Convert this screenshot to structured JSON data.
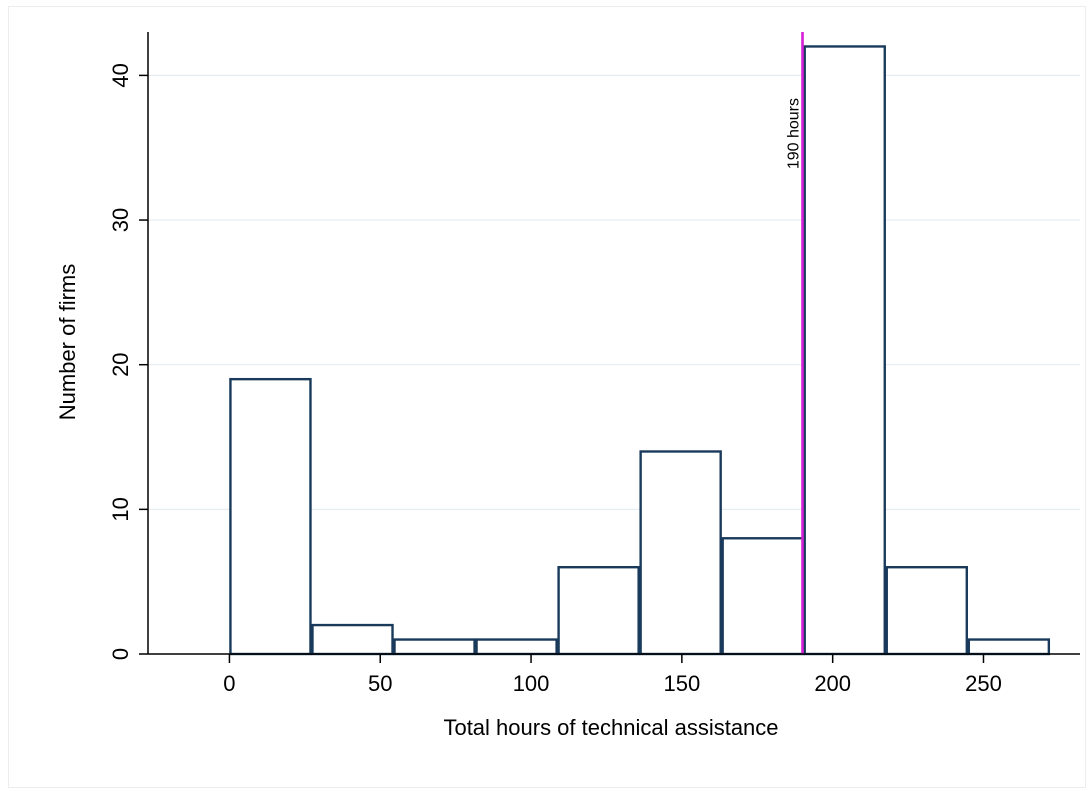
{
  "chart_data": {
    "type": "bar",
    "subtype": "histogram",
    "title": "",
    "xlabel": "Total hours of technical assistance",
    "ylabel": "Number of firms",
    "xlim": [
      -27,
      282
    ],
    "ylim": [
      0,
      43
    ],
    "x_ticks": [
      0,
      50,
      100,
      150,
      200,
      250
    ],
    "y_ticks": [
      0,
      10,
      20,
      30,
      40
    ],
    "grid": "horizontal",
    "bin_width": 27.2,
    "bins": [
      {
        "start": 0,
        "end": 27.2,
        "value": 19
      },
      {
        "start": 27.2,
        "end": 54.4,
        "value": 2
      },
      {
        "start": 54.4,
        "end": 81.6,
        "value": 1
      },
      {
        "start": 81.6,
        "end": 108.8,
        "value": 1
      },
      {
        "start": 108.8,
        "end": 136.0,
        "value": 6
      },
      {
        "start": 136.0,
        "end": 163.2,
        "value": 14
      },
      {
        "start": 163.2,
        "end": 190.4,
        "value": 8
      },
      {
        "start": 190.4,
        "end": 217.6,
        "value": 42
      },
      {
        "start": 217.6,
        "end": 244.8,
        "value": 6
      },
      {
        "start": 244.8,
        "end": 272.0,
        "value": 1
      }
    ],
    "reference_line": {
      "x": 190,
      "label": "190 hours",
      "color": "#d61fd6"
    },
    "colors": {
      "bar_edge": "#1a3a5c",
      "bar_fill": "#ffffff",
      "grid": "#e4eef2"
    }
  }
}
